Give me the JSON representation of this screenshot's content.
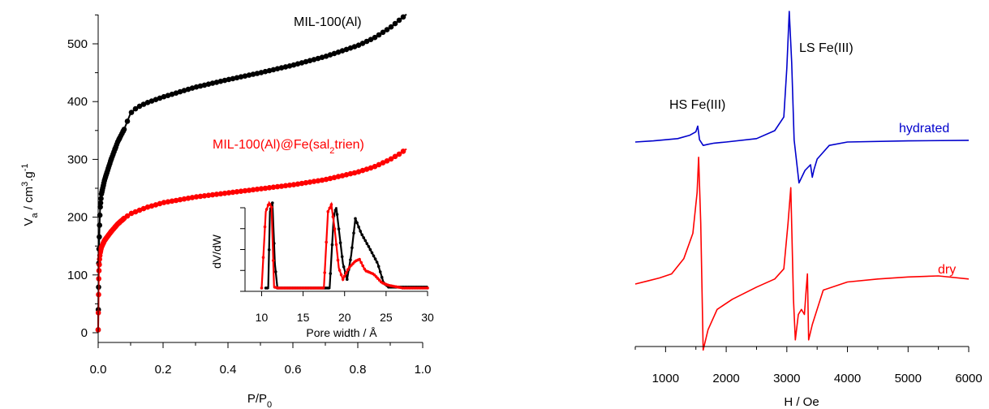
{
  "chart_data": [
    {
      "type": "scatter",
      "title": "",
      "xlabel": "P/P0",
      "ylabel": "Va / cm3.g-1",
      "xlim": [
        0,
        1.0
      ],
      "ylim": [
        0,
        560
      ],
      "x_ticks": [
        0.0,
        0.2,
        0.4,
        0.6,
        0.8,
        1.0
      ],
      "x_tick_labels": [
        "0.0",
        "0.2",
        "0.4",
        "0.6",
        "0.8",
        "1.0"
      ],
      "y_ticks": [
        0,
        100,
        200,
        300,
        400,
        500
      ],
      "y_tick_labels": [
        "0",
        "100",
        "200",
        "300",
        "400",
        "500"
      ],
      "grid": false,
      "series": [
        {
          "name": "MIL-100(Al)",
          "color": "#000000",
          "points": [
            [
              0,
              5
            ],
            [
              0.001,
              70
            ],
            [
              0.002,
              130
            ],
            [
              0.004,
              180
            ],
            [
              0.006,
              215
            ],
            [
              0.01,
              240
            ],
            [
              0.02,
              265
            ],
            [
              0.04,
              300
            ],
            [
              0.06,
              330
            ],
            [
              0.08,
              352
            ],
            [
              0.1,
              380
            ],
            [
              0.12,
              390
            ],
            [
              0.15,
              398
            ],
            [
              0.2,
              408
            ],
            [
              0.3,
              425
            ],
            [
              0.4,
              438
            ],
            [
              0.5,
              450
            ],
            [
              0.6,
              463
            ],
            [
              0.7,
              478
            ],
            [
              0.8,
              497
            ],
            [
              0.85,
              510
            ],
            [
              0.9,
              528
            ],
            [
              0.93,
              542
            ],
            [
              0.95,
              551
            ]
          ]
        },
        {
          "name": "MIL-100(Al)@Fe(sal2trien)",
          "color": "#ff0000",
          "points": [
            [
              0,
              5
            ],
            [
              0.001,
              60
            ],
            [
              0.002,
              100
            ],
            [
              0.004,
              125
            ],
            [
              0.006,
              138
            ],
            [
              0.01,
              148
            ],
            [
              0.02,
              160
            ],
            [
              0.04,
              175
            ],
            [
              0.06,
              188
            ],
            [
              0.08,
              198
            ],
            [
              0.1,
              206
            ],
            [
              0.15,
              217
            ],
            [
              0.2,
              225
            ],
            [
              0.3,
              235
            ],
            [
              0.4,
              242
            ],
            [
              0.5,
              249
            ],
            [
              0.6,
              256
            ],
            [
              0.7,
              265
            ],
            [
              0.8,
              278
            ],
            [
              0.85,
              287
            ],
            [
              0.9,
              300
            ],
            [
              0.93,
              310
            ],
            [
              0.95,
              318
            ]
          ]
        }
      ],
      "annotations": [
        {
          "text": "MIL-100(Al)",
          "color": "#000000"
        },
        {
          "text_prefix": "MIL-100(Al)@Fe(sal",
          "subscript": "2",
          "text_suffix": "trien)",
          "color": "#ff0000"
        }
      ],
      "axis_label_parts": {
        "x_main": "P/P",
        "x_sub": "0",
        "y_main": "V",
        "y_sub": "a",
        "y_unit": " / cm",
        "y_sup1": "3",
        "y_mid": ".g",
        "y_sup2": "-1"
      }
    },
    {
      "type": "line",
      "title": "",
      "xlabel": "Pore width / Å",
      "ylabel": "dV/dW",
      "xlim": [
        8,
        30
      ],
      "ylim": [
        0,
        1
      ],
      "x_ticks": [
        10,
        15,
        20,
        25,
        30
      ],
      "x_tick_labels": [
        "10",
        "15",
        "20",
        "25",
        "30"
      ],
      "series": [
        {
          "name": "MIL-100(Al)",
          "color": "#000000",
          "points": [
            [
              10.5,
              0.02
            ],
            [
              10.8,
              0.02
            ],
            [
              11.0,
              0.9
            ],
            [
              11.3,
              1.0
            ],
            [
              11.6,
              0.3
            ],
            [
              11.9,
              0.02
            ],
            [
              17.5,
              0.02
            ],
            [
              18.2,
              0.02
            ],
            [
              18.7,
              0.85
            ],
            [
              19.0,
              0.95
            ],
            [
              19.3,
              0.7
            ],
            [
              19.8,
              0.3
            ],
            [
              20.3,
              0.12
            ],
            [
              20.8,
              0.4
            ],
            [
              21.3,
              0.82
            ],
            [
              22,
              0.65
            ],
            [
              23,
              0.48
            ],
            [
              24,
              0.3
            ],
            [
              24.7,
              0.08
            ],
            [
              25.3,
              0.03
            ],
            [
              27,
              0.03
            ],
            [
              30,
              0.03
            ]
          ]
        },
        {
          "name": "MIL-100(Al)@Fe(sal2trien)",
          "color": "#ff0000",
          "points": [
            [
              10,
              0.02
            ],
            [
              10.5,
              0.9
            ],
            [
              10.9,
              1.0
            ],
            [
              11.2,
              0.95
            ],
            [
              11.5,
              0.03
            ],
            [
              12,
              0.02
            ],
            [
              17.5,
              0.02
            ],
            [
              18.0,
              0.9
            ],
            [
              18.4,
              0.98
            ],
            [
              18.8,
              0.7
            ],
            [
              19.3,
              0.25
            ],
            [
              19.8,
              0.12
            ],
            [
              20.5,
              0.25
            ],
            [
              21.3,
              0.33
            ],
            [
              21.8,
              0.35
            ],
            [
              22.5,
              0.22
            ],
            [
              23.5,
              0.18
            ],
            [
              24.5,
              0.08
            ],
            [
              25.3,
              0.05
            ],
            [
              27,
              0.02
            ],
            [
              30,
              0.02
            ]
          ]
        }
      ]
    },
    {
      "type": "line",
      "title": "",
      "xlabel": "H / Oe",
      "ylabel": "",
      "xlim": [
        500,
        6000
      ],
      "x_ticks": [
        1000,
        2000,
        3000,
        4000,
        5000,
        6000
      ],
      "x_tick_labels": [
        "1000",
        "2000",
        "3000",
        "4000",
        "5000",
        "6000"
      ],
      "series": [
        {
          "name": "hydrated",
          "color": "#0000cc",
          "points": [
            [
              500,
              0
            ],
            [
              800,
              0.1
            ],
            [
              1000,
              0.2
            ],
            [
              1200,
              0.3
            ],
            [
              1400,
              0.6
            ],
            [
              1500,
              0.9
            ],
            [
              1530,
              1.4
            ],
            [
              1560,
              0.2
            ],
            [
              1620,
              -0.3
            ],
            [
              1700,
              -0.2
            ],
            [
              1800,
              -0.1
            ],
            [
              2000,
              0
            ],
            [
              2500,
              0.3
            ],
            [
              2800,
              1.0
            ],
            [
              2950,
              2.2
            ],
            [
              3000,
              6.5
            ],
            [
              3040,
              11.5
            ],
            [
              3080,
              7
            ],
            [
              3120,
              0.2
            ],
            [
              3200,
              -3.6
            ],
            [
              3300,
              -2.5
            ],
            [
              3390,
              -2.0
            ],
            [
              3420,
              -3.1
            ],
            [
              3450,
              -2.4
            ],
            [
              3500,
              -1.5
            ],
            [
              3700,
              -0.3
            ],
            [
              4000,
              0
            ],
            [
              5000,
              0.1
            ],
            [
              6000,
              0.15
            ]
          ]
        },
        {
          "name": "dry",
          "color": "#ff0000",
          "points": [
            [
              500,
              0
            ],
            [
              700,
              0.3
            ],
            [
              900,
              0.6
            ],
            [
              1100,
              1.0
            ],
            [
              1300,
              2.5
            ],
            [
              1450,
              5.0
            ],
            [
              1520,
              9.0
            ],
            [
              1545,
              12.5
            ],
            [
              1580,
              6.0
            ],
            [
              1620,
              -6.5
            ],
            [
              1700,
              -4.5
            ],
            [
              1850,
              -2.5
            ],
            [
              2100,
              -1.5
            ],
            [
              2500,
              -0.3
            ],
            [
              2800,
              0.5
            ],
            [
              2950,
              1.5
            ],
            [
              3020,
              6.0
            ],
            [
              3065,
              9.5
            ],
            [
              3110,
              -1.5
            ],
            [
              3140,
              -5.5
            ],
            [
              3190,
              -3.0
            ],
            [
              3240,
              -2.5
            ],
            [
              3290,
              -3.0
            ],
            [
              3320,
              -0.5
            ],
            [
              3340,
              1.0
            ],
            [
              3360,
              -5.5
            ],
            [
              3420,
              -4.0
            ],
            [
              3600,
              -0.6
            ],
            [
              4000,
              0.2
            ],
            [
              4500,
              0.5
            ],
            [
              5000,
              0.7
            ],
            [
              5500,
              0.8
            ],
            [
              6000,
              0.5
            ]
          ]
        }
      ],
      "annotations": [
        {
          "text": "HS Fe(III)",
          "color": "#000000"
        },
        {
          "text": "LS Fe(III)",
          "color": "#000000"
        },
        {
          "text": "hydrated",
          "color": "#0000cc"
        },
        {
          "text": "dry",
          "color": "#ff0000"
        }
      ]
    }
  ]
}
